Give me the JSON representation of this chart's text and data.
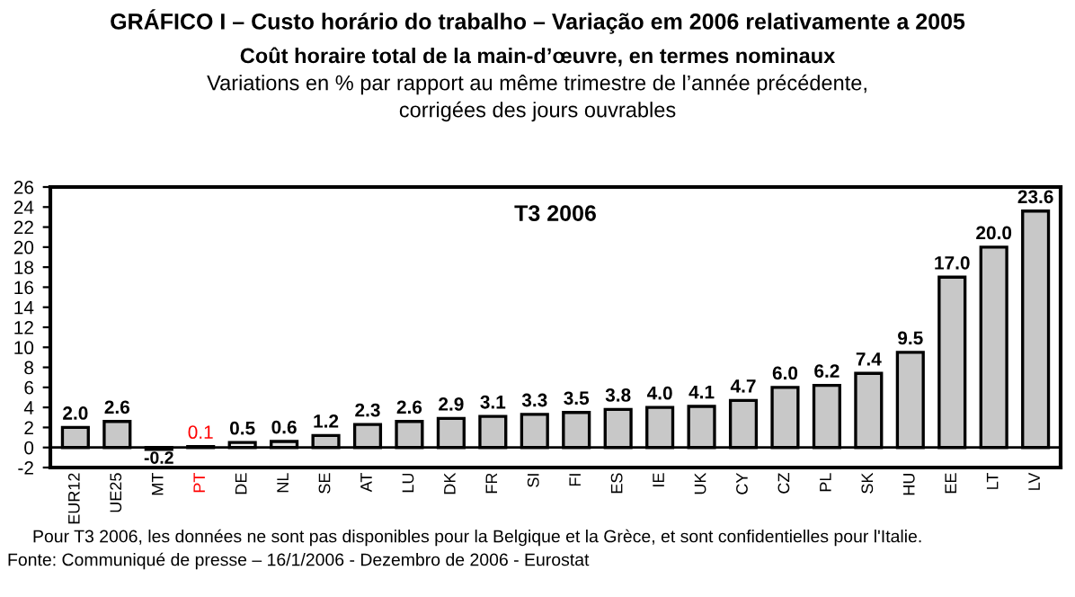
{
  "chart_data": {
    "type": "bar",
    "title": "GRÁFICO I – Custo horário do trabalho – Variação em 2006 relativamente a 2005",
    "subtitle": "Coût horaire total de la main-d’œuvre, en termes nominaux\nVariations en % par rapport au même trimestre de l’année précédente,\ncorrigées des jours ouvrables",
    "categories": [
      "EUR12",
      "UE25",
      "MT",
      "PT",
      "DE",
      "NL",
      "SE",
      "AT",
      "LU",
      "DK",
      "FR",
      "SI",
      "FI",
      "ES",
      "IE",
      "UK",
      "CY",
      "CZ",
      "PL",
      "SK",
      "HU",
      "EE",
      "LT",
      "LV"
    ],
    "values": [
      2.0,
      2.6,
      -0.2,
      0.1,
      0.5,
      0.6,
      1.2,
      2.3,
      2.6,
      2.9,
      3.1,
      3.3,
      3.5,
      3.8,
      4.0,
      4.1,
      4.7,
      6.0,
      6.2,
      7.4,
      9.5,
      17.0,
      20.0,
      23.6
    ],
    "colors": [
      "#c8c8c8",
      "#c8c8c8",
      "#c8c8c8",
      "#ff0000",
      "#f0f0f0",
      "#e0e0e0",
      "#c8c8c8",
      "#c8c8c8",
      "#c8c8c8",
      "#c8c8c8",
      "#c8c8c8",
      "#c8c8c8",
      "#c8c8c8",
      "#c8c8c8",
      "#c8c8c8",
      "#c8c8c8",
      "#c8c8c8",
      "#c8c8c8",
      "#c8c8c8",
      "#c8c8c8",
      "#c8c8c8",
      "#c8c8c8",
      "#c8c8c8",
      "#c8c8c8"
    ],
    "value_labels": [
      "2.0",
      "2.6",
      "-0.2",
      "0.1",
      "0.5",
      "0.6",
      "1.2",
      "2.3",
      "2.6",
      "2.9",
      "3.1",
      "3.3",
      "3.5",
      "3.8",
      "4.0",
      "4.1",
      "4.7",
      "6.0",
      "6.2",
      "7.4",
      "9.5",
      "17.0",
      "20.0",
      "23.6"
    ],
    "ref_lines": [
      {
        "axis": "y",
        "value": 0
      }
    ],
    "ylim": [
      -2,
      26
    ],
    "yticks": [
      -2,
      0,
      2,
      4,
      6,
      8,
      10,
      12,
      14,
      16,
      18,
      20,
      22,
      24,
      26
    ],
    "legend": false,
    "annotations": [
      {
        "text": "T3 2006"
      },
      "Pour T3 2006, les données ne sont pas disponibles pour la Belgique et la Grèce, et sont confidentielles pour l'Italie.",
      "Fonte: Communiqué de presse – 16/1/2006 - Dezembro de 2006 - Eurostat"
    ]
  }
}
